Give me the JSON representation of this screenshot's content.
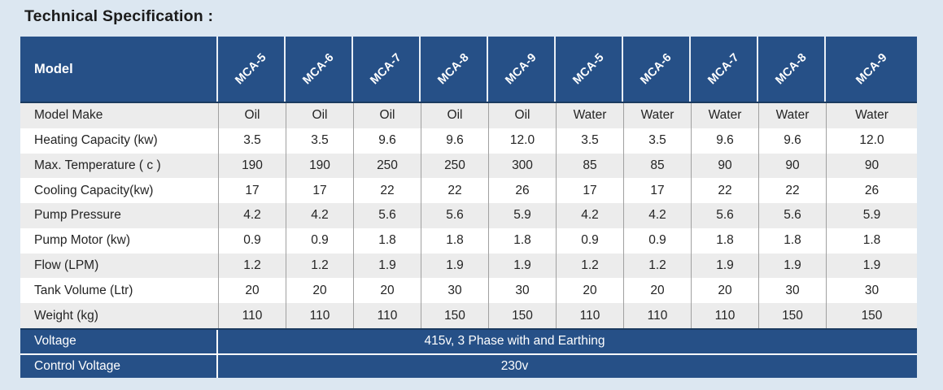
{
  "title": "Technical Specification :",
  "table": {
    "model_header": "Model",
    "columns": [
      "MCA-5",
      "MCA-6",
      "MCA-7",
      "MCA-8",
      "MCA-9",
      "MCA-5",
      "MCA-6",
      "MCA-7",
      "MCA-8",
      "MCA-9"
    ],
    "rows": [
      {
        "label": "Model Make",
        "values": [
          "Oil",
          "Oil",
          "Oil",
          "Oil",
          "Oil",
          "Water",
          "Water",
          "Water",
          "Water",
          "Water"
        ]
      },
      {
        "label": "Heating Capacity (kw)",
        "values": [
          "3.5",
          "3.5",
          "9.6",
          "9.6",
          "12.0",
          "3.5",
          "3.5",
          "9.6",
          "9.6",
          "12.0"
        ]
      },
      {
        "label": "Max. Temperature ( c )",
        "values": [
          "190",
          "190",
          "250",
          "250",
          "300",
          "85",
          "85",
          "90",
          "90",
          "90"
        ]
      },
      {
        "label": "Cooling Capacity(kw)",
        "values": [
          "17",
          "17",
          "22",
          "22",
          "26",
          "17",
          "17",
          "22",
          "22",
          "26"
        ]
      },
      {
        "label": "Pump Pressure",
        "values": [
          "4.2",
          "4.2",
          "5.6",
          "5.6",
          "5.9",
          "4.2",
          "4.2",
          "5.6",
          "5.6",
          "5.9"
        ]
      },
      {
        "label": "Pump Motor (kw)",
        "values": [
          "0.9",
          "0.9",
          "1.8",
          "1.8",
          "1.8",
          "0.9",
          "0.9",
          "1.8",
          "1.8",
          "1.8"
        ]
      },
      {
        "label": "Flow (LPM)",
        "values": [
          "1.2",
          "1.2",
          "1.9",
          "1.9",
          "1.9",
          "1.2",
          "1.2",
          "1.9",
          "1.9",
          "1.9"
        ]
      },
      {
        "label": "Tank Volume (Ltr)",
        "values": [
          "20",
          "20",
          "20",
          "30",
          "30",
          "20",
          "20",
          "20",
          "30",
          "30"
        ]
      },
      {
        "label": "Weight (kg)",
        "values": [
          "110",
          "110",
          "110",
          "150",
          "150",
          "110",
          "110",
          "110",
          "150",
          "150"
        ]
      }
    ],
    "footer_rows": [
      {
        "label": "Voltage",
        "value": "415v, 3 Phase with and Earthing"
      },
      {
        "label": "Control Voltage",
        "value": "230v"
      }
    ]
  },
  "colors": {
    "header_blue": "#265087",
    "page_bg": "#DCE7F1",
    "stripe_gray": "#ECECEC",
    "divider_gray": "#A0A0A0",
    "dark_line": "#1B3A5F"
  }
}
